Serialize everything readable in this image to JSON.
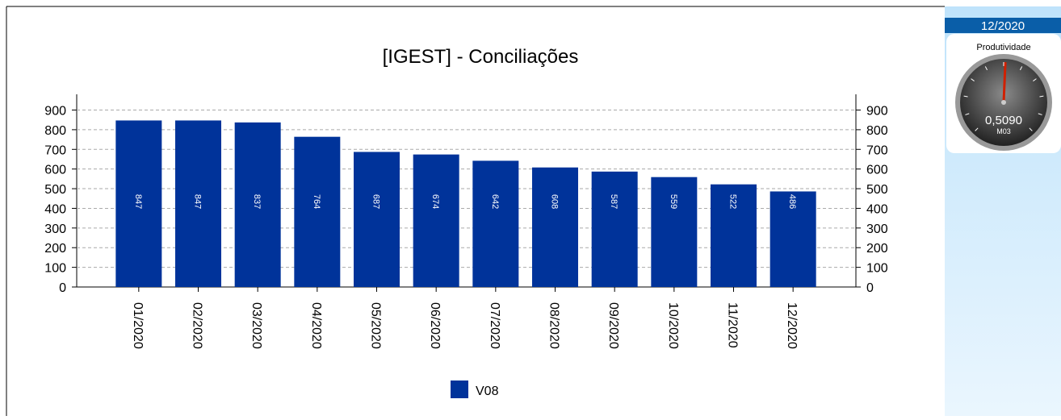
{
  "chart_data": {
    "type": "bar",
    "title": "[IGEST]  - Conciliações",
    "categories": [
      "01/2020",
      "02/2020",
      "03/2020",
      "04/2020",
      "05/2020",
      "06/2020",
      "07/2020",
      "08/2020",
      "09/2020",
      "10/2020",
      "11/2020",
      "12/2020"
    ],
    "series": [
      {
        "name": "V08",
        "color": "#00339a",
        "values": [
          847,
          847,
          837,
          764,
          687,
          674,
          642,
          608,
          587,
          559,
          522,
          486
        ]
      }
    ],
    "ylim": [
      0,
      980
    ],
    "yticks": [
      0,
      100,
      200,
      300,
      400,
      500,
      600,
      700,
      800,
      900
    ],
    "grid": true,
    "legend": "bottom"
  },
  "panel": {
    "period": "12/2020",
    "gauge": {
      "title": "Produtividade",
      "value": 0.509,
      "label": "0,5090",
      "code": "M03",
      "lim": [
        0,
        1
      ]
    }
  }
}
